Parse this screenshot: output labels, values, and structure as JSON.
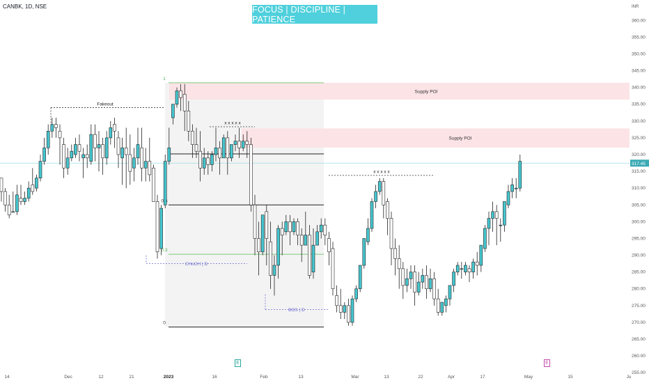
{
  "header": {
    "symbol": "CANBK, 1D, NSE"
  },
  "banner": {
    "text": "FOCUS | DISCIPLINE | PATIENCE",
    "bg": "#4fd0dc",
    "color": "#ffffff"
  },
  "events": {
    "earnings_1": "E",
    "earnings_2": "E"
  },
  "colors": {
    "up": "#45c6cf",
    "down": "#ffffff",
    "wick": "#222222",
    "supply": "#fbe3e6",
    "fib_zone": "#f3f3f3",
    "dash": "#333333",
    "blue_dash": "#6a6acf",
    "last_price": "#3aa9b4"
  },
  "chart_data": {
    "type": "candlestick",
    "currency": "INR",
    "last_price": 317.45,
    "ylim": [
      254,
      364
    ],
    "y_ticks": [
      255,
      260,
      265,
      270,
      275,
      280,
      285,
      290,
      295,
      300,
      305,
      310,
      315,
      320,
      325,
      330,
      335,
      340,
      345,
      350,
      355,
      360
    ],
    "x_ticks": [
      "14",
      "Dec",
      "12",
      "21",
      "2023",
      "16",
      "Feb",
      "13",
      "Mar",
      "13",
      "22",
      "Apr",
      "17",
      "May",
      "15",
      "Ju"
    ],
    "candles": [
      [
        0,
        313,
        313,
        309,
        306
      ],
      [
        1,
        309,
        310,
        305,
        303
      ],
      [
        2,
        305,
        308,
        302,
        301
      ],
      [
        3,
        303,
        309,
        303,
        303
      ],
      [
        4,
        303,
        311,
        308,
        302
      ],
      [
        5,
        307,
        311,
        306,
        305
      ],
      [
        6,
        306,
        309,
        307,
        305
      ],
      [
        7,
        307,
        312,
        310,
        306
      ],
      [
        8,
        311,
        316,
        309,
        308
      ],
      [
        9,
        310,
        314,
        313,
        309
      ],
      [
        10,
        313,
        320,
        318,
        312
      ],
      [
        11,
        318,
        325,
        322,
        317
      ],
      [
        12,
        322,
        329,
        327,
        320
      ],
      [
        13,
        327,
        331,
        329,
        325
      ],
      [
        14,
        329,
        331,
        328,
        325
      ],
      [
        15,
        327,
        329,
        325,
        317
      ],
      [
        16,
        323,
        325,
        316,
        313
      ],
      [
        17,
        316,
        322,
        319,
        314
      ],
      [
        18,
        319,
        323,
        321,
        318
      ],
      [
        19,
        320,
        325,
        323,
        319
      ],
      [
        20,
        323,
        326,
        321,
        318
      ],
      [
        21,
        319,
        322,
        320,
        313
      ],
      [
        22,
        320,
        323,
        319,
        316
      ],
      [
        23,
        318,
        329,
        326,
        317
      ],
      [
        24,
        326,
        329,
        322,
        318
      ],
      [
        25,
        322,
        327,
        323,
        315
      ],
      [
        26,
        323,
        325,
        319,
        314
      ],
      [
        27,
        319,
        327,
        325,
        317
      ],
      [
        28,
        325,
        330,
        328,
        323
      ],
      [
        29,
        329,
        331,
        327,
        322
      ],
      [
        30,
        325,
        327,
        320,
        316
      ],
      [
        31,
        319,
        325,
        322,
        311
      ],
      [
        32,
        322,
        328,
        320,
        310
      ],
      [
        33,
        320,
        326,
        315,
        311
      ],
      [
        34,
        316,
        322,
        319,
        312
      ],
      [
        35,
        319,
        328,
        323,
        317
      ],
      [
        36,
        322,
        328,
        316,
        312
      ],
      [
        37,
        316,
        322,
        318,
        312
      ],
      [
        38,
        318,
        325,
        314,
        312
      ],
      [
        39,
        316,
        317,
        306,
        306
      ],
      [
        40,
        306,
        308,
        291,
        289
      ],
      [
        41,
        292,
        305,
        304,
        290
      ],
      [
        42,
        305,
        320,
        318,
        304
      ],
      [
        43,
        318,
        328,
        322,
        317
      ],
      [
        44,
        331,
        335,
        335,
        329
      ],
      [
        45,
        335,
        340,
        339,
        334
      ],
      [
        46,
        339,
        341,
        337,
        333
      ],
      [
        47,
        338,
        341,
        333,
        327
      ],
      [
        48,
        333,
        336,
        327,
        324
      ],
      [
        49,
        327,
        329,
        323,
        319
      ],
      [
        50,
        323,
        328,
        321,
        319
      ],
      [
        51,
        321,
        327,
        316,
        312
      ],
      [
        52,
        316,
        322,
        319,
        314
      ],
      [
        53,
        319,
        321,
        317,
        314
      ],
      [
        54,
        317,
        321,
        320,
        315
      ],
      [
        55,
        320,
        328,
        322,
        318
      ],
      [
        56,
        322,
        324,
        319,
        314
      ],
      [
        57,
        319,
        326,
        325,
        319
      ],
      [
        58,
        325,
        327,
        319,
        314
      ],
      [
        59,
        319,
        322,
        323,
        318
      ],
      [
        60,
        323,
        326,
        324,
        321
      ],
      [
        61,
        324,
        328,
        322,
        319
      ],
      [
        62,
        322,
        326,
        324,
        321
      ],
      [
        63,
        324,
        327,
        323,
        319
      ],
      [
        64,
        323,
        325,
        305,
        303
      ],
      [
        65,
        305,
        308,
        295,
        290
      ],
      [
        66,
        295,
        300,
        291,
        284
      ],
      [
        67,
        291,
        302,
        302,
        290
      ],
      [
        68,
        303,
        305,
        295,
        287
      ],
      [
        69,
        294,
        300,
        284,
        280
      ],
      [
        70,
        284,
        290,
        287,
        278
      ],
      [
        71,
        287,
        299,
        298,
        283
      ],
      [
        72,
        298,
        300,
        296,
        290
      ],
      [
        73,
        297,
        302,
        300,
        296
      ],
      [
        74,
        300,
        302,
        297,
        293
      ],
      [
        75,
        297,
        301,
        300,
        296
      ],
      [
        76,
        300,
        301,
        296,
        293
      ],
      [
        77,
        296,
        298,
        293,
        288
      ],
      [
        78,
        293,
        303,
        296,
        293
      ],
      [
        79,
        296,
        299,
        284,
        283
      ],
      [
        80,
        285,
        298,
        293,
        283
      ],
      [
        81,
        293,
        299,
        297,
        293
      ],
      [
        82,
        297,
        301,
        299,
        295
      ],
      [
        83,
        299,
        301,
        296,
        293
      ],
      [
        84,
        295,
        297,
        291,
        287
      ],
      [
        85,
        292,
        294,
        280,
        278
      ],
      [
        86,
        278,
        281,
        275,
        273
      ],
      [
        87,
        275,
        280,
        273,
        271
      ],
      [
        88,
        273,
        276,
        275,
        271
      ],
      [
        89,
        275,
        277,
        270,
        269
      ],
      [
        90,
        270,
        278,
        277,
        269
      ],
      [
        91,
        277,
        281,
        280,
        276
      ],
      [
        92,
        280,
        284,
        287,
        279
      ],
      [
        93,
        287,
        292,
        295,
        286
      ],
      [
        94,
        294,
        301,
        298,
        293
      ],
      [
        95,
        298,
        307,
        306,
        297
      ],
      [
        96,
        306,
        311,
        309,
        304
      ],
      [
        97,
        309,
        313,
        312,
        308
      ],
      [
        98,
        312,
        313,
        305,
        301
      ],
      [
        99,
        306,
        307,
        301,
        296
      ],
      [
        100,
        301,
        303,
        292,
        287
      ],
      [
        101,
        292,
        295,
        289,
        284
      ],
      [
        102,
        289,
        293,
        286,
        280
      ],
      [
        103,
        286,
        288,
        281,
        277
      ],
      [
        104,
        281,
        286,
        283,
        279
      ],
      [
        105,
        283,
        287,
        285,
        280
      ],
      [
        106,
        285,
        287,
        279,
        275
      ],
      [
        107,
        279,
        285,
        282,
        278
      ],
      [
        108,
        282,
        286,
        284,
        280
      ],
      [
        109,
        284,
        287,
        280,
        277
      ],
      [
        110,
        280,
        286,
        283,
        279
      ],
      [
        111,
        283,
        285,
        277,
        275
      ],
      [
        112,
        277,
        280,
        273,
        272
      ],
      [
        113,
        273,
        276,
        276,
        272
      ],
      [
        114,
        275,
        278,
        277,
        273
      ],
      [
        115,
        277,
        281,
        281,
        275
      ],
      [
        116,
        281,
        286,
        285,
        279
      ],
      [
        117,
        285,
        288,
        287,
        284
      ],
      [
        118,
        286,
        288,
        286,
        283
      ],
      [
        119,
        285,
        288,
        287,
        284
      ],
      [
        120,
        286,
        287,
        285,
        282
      ],
      [
        121,
        285,
        289,
        288,
        283
      ],
      [
        122,
        288,
        291,
        287,
        284
      ],
      [
        123,
        287,
        292,
        293,
        285
      ],
      [
        124,
        292,
        299,
        298,
        291
      ],
      [
        125,
        298,
        303,
        301,
        293
      ],
      [
        126,
        301,
        306,
        303,
        297
      ],
      [
        127,
        303,
        305,
        301,
        293
      ],
      [
        128,
        299,
        301,
        299,
        294
      ],
      [
        129,
        299,
        306,
        306,
        297
      ],
      [
        130,
        305,
        311,
        309,
        304
      ],
      [
        131,
        309,
        313,
        311,
        307
      ],
      [
        132,
        310,
        313,
        310,
        307
      ],
      [
        133,
        310,
        320,
        318,
        309
      ]
    ],
    "zones": [
      {
        "label": "Supply POI",
        "top": 341.4,
        "bottom": 336.4
      },
      {
        "label": "Supply POI",
        "top": 327.8,
        "bottom": 322.1
      }
    ],
    "fib_levels": [
      {
        "label": "1",
        "value": 341.4
      },
      {
        "label": "0.5",
        "value": 305.0
      },
      {
        "label": "0.3",
        "value": 290.3
      },
      {
        "label": "0",
        "value": 268.6
      }
    ],
    "annotations": {
      "fakeout": {
        "label": "Fakeout",
        "price": 334.0
      },
      "choch": {
        "label": "CHoCH | D",
        "price": 287.5
      },
      "bos": {
        "label": "BOS | D",
        "price": 273.8
      },
      "xxxxx_1": {
        "label": "x x x x x",
        "price": 328.3
      },
      "xxxxx_2": {
        "label": "x x x x x",
        "price": 313.8
      }
    }
  }
}
